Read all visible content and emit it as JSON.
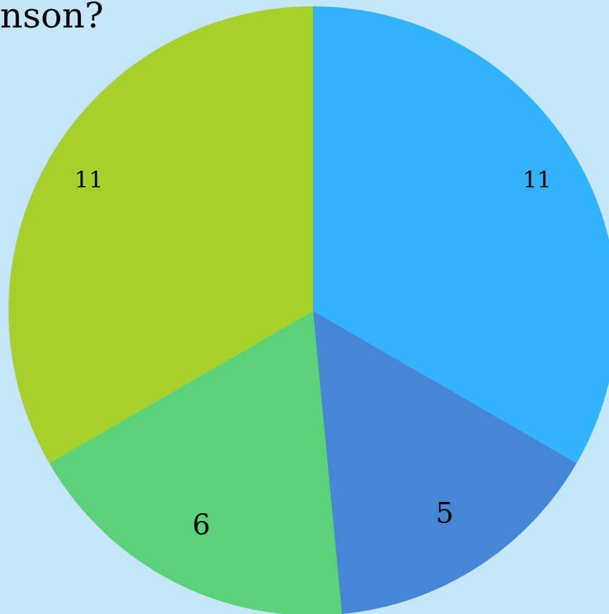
{
  "chart_data": {
    "type": "pie",
    "title": "nson?",
    "slices": [
      {
        "label": "11",
        "value": 11,
        "color": "#33B3FF"
      },
      {
        "label": "5",
        "value": 5,
        "color": "#4687D5"
      },
      {
        "label": "6",
        "value": 6,
        "color": "#5BD17A"
      },
      {
        "label": "11",
        "value": 11,
        "color": "#A6D12B"
      }
    ],
    "start_angle_deg": 0,
    "direction": "clockwise"
  },
  "colors": {
    "background": "#C5E5F9"
  }
}
